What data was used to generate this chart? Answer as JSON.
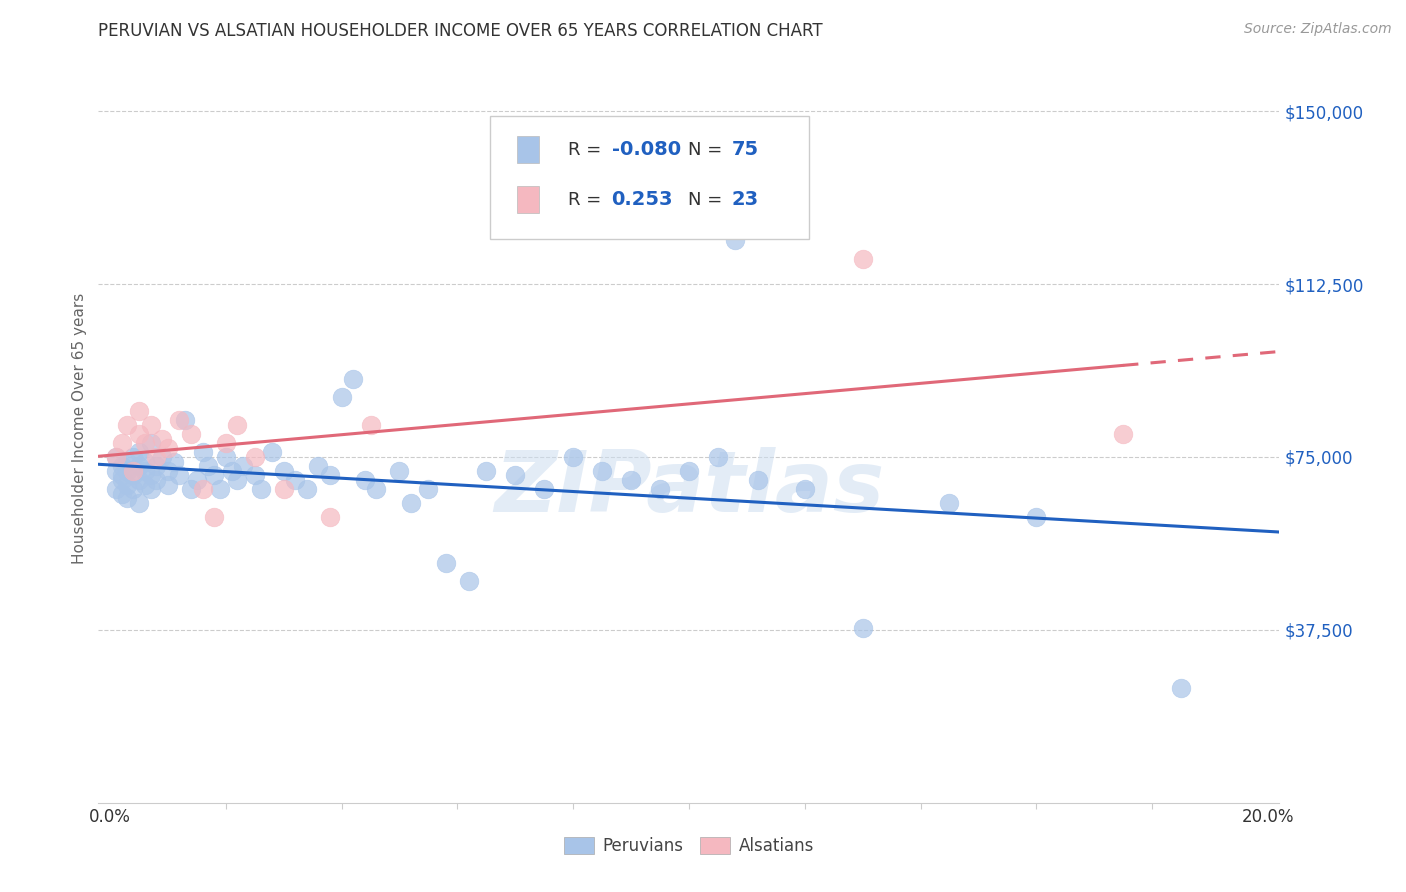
{
  "title": "PERUVIAN VS ALSATIAN HOUSEHOLDER INCOME OVER 65 YEARS CORRELATION CHART",
  "source": "Source: ZipAtlas.com",
  "ylabel": "Householder Income Over 65 years",
  "xlabel_ticks": [
    "0.0%",
    "",
    "",
    "",
    "",
    "",
    "",
    "",
    "",
    "",
    "20.0%"
  ],
  "xlabel_vals": [
    0.0,
    0.02,
    0.04,
    0.06,
    0.08,
    0.1,
    0.12,
    0.14,
    0.16,
    0.18,
    0.2
  ],
  "ytick_labels": [
    "$37,500",
    "$75,000",
    "$112,500",
    "$150,000"
  ],
  "ytick_vals": [
    37500,
    75000,
    112500,
    150000
  ],
  "ylim": [
    0,
    162500
  ],
  "xlim": [
    -0.002,
    0.202
  ],
  "peruvian_color": "#a8c4e8",
  "alsatian_color": "#f5b8c0",
  "peruvian_line_color": "#2060c0",
  "alsatian_line_color": "#e06878",
  "legend_peruvian_label": "Peruvians",
  "legend_alsatian_label": "Alsatians",
  "R_peruvian": "-0.080",
  "N_peruvian": "75",
  "R_alsatian": "0.253",
  "N_alsatian": "23",
  "watermark": "ZIPatlas",
  "peruvian_x": [
    0.001,
    0.001,
    0.001,
    0.002,
    0.002,
    0.002,
    0.002,
    0.003,
    0.003,
    0.003,
    0.003,
    0.004,
    0.004,
    0.004,
    0.005,
    0.005,
    0.005,
    0.005,
    0.006,
    0.006,
    0.006,
    0.007,
    0.007,
    0.007,
    0.008,
    0.008,
    0.009,
    0.01,
    0.01,
    0.011,
    0.012,
    0.013,
    0.014,
    0.015,
    0.016,
    0.017,
    0.018,
    0.019,
    0.02,
    0.021,
    0.022,
    0.023,
    0.025,
    0.026,
    0.028,
    0.03,
    0.032,
    0.034,
    0.036,
    0.038,
    0.04,
    0.042,
    0.044,
    0.046,
    0.05,
    0.052,
    0.055,
    0.058,
    0.062,
    0.065,
    0.07,
    0.075,
    0.08,
    0.085,
    0.09,
    0.095,
    0.1,
    0.105,
    0.108,
    0.112,
    0.12,
    0.13,
    0.145,
    0.16,
    0.185
  ],
  "peruvian_y": [
    72000,
    68000,
    75000,
    70000,
    73000,
    67000,
    71000,
    69000,
    74000,
    72000,
    66000,
    71000,
    75000,
    68000,
    73000,
    70000,
    76000,
    65000,
    72000,
    74000,
    69000,
    71000,
    78000,
    68000,
    73000,
    70000,
    75000,
    72000,
    69000,
    74000,
    71000,
    83000,
    68000,
    70000,
    76000,
    73000,
    71000,
    68000,
    75000,
    72000,
    70000,
    73000,
    71000,
    68000,
    76000,
    72000,
    70000,
    68000,
    73000,
    71000,
    88000,
    92000,
    70000,
    68000,
    72000,
    65000,
    68000,
    52000,
    48000,
    72000,
    71000,
    68000,
    75000,
    72000,
    70000,
    68000,
    72000,
    75000,
    122000,
    70000,
    68000,
    38000,
    65000,
    62000,
    25000
  ],
  "alsatian_x": [
    0.001,
    0.002,
    0.003,
    0.004,
    0.005,
    0.005,
    0.006,
    0.007,
    0.008,
    0.009,
    0.01,
    0.012,
    0.014,
    0.016,
    0.018,
    0.02,
    0.022,
    0.025,
    0.03,
    0.038,
    0.045,
    0.13,
    0.175
  ],
  "alsatian_y": [
    75000,
    78000,
    82000,
    72000,
    80000,
    85000,
    78000,
    82000,
    75000,
    79000,
    77000,
    83000,
    80000,
    68000,
    62000,
    78000,
    82000,
    75000,
    68000,
    62000,
    82000,
    118000,
    80000
  ],
  "background_color": "#ffffff",
  "grid_color": "#cccccc",
  "title_color": "#333333",
  "ytick_color": "#2060c0",
  "ylabel_color": "#666666"
}
